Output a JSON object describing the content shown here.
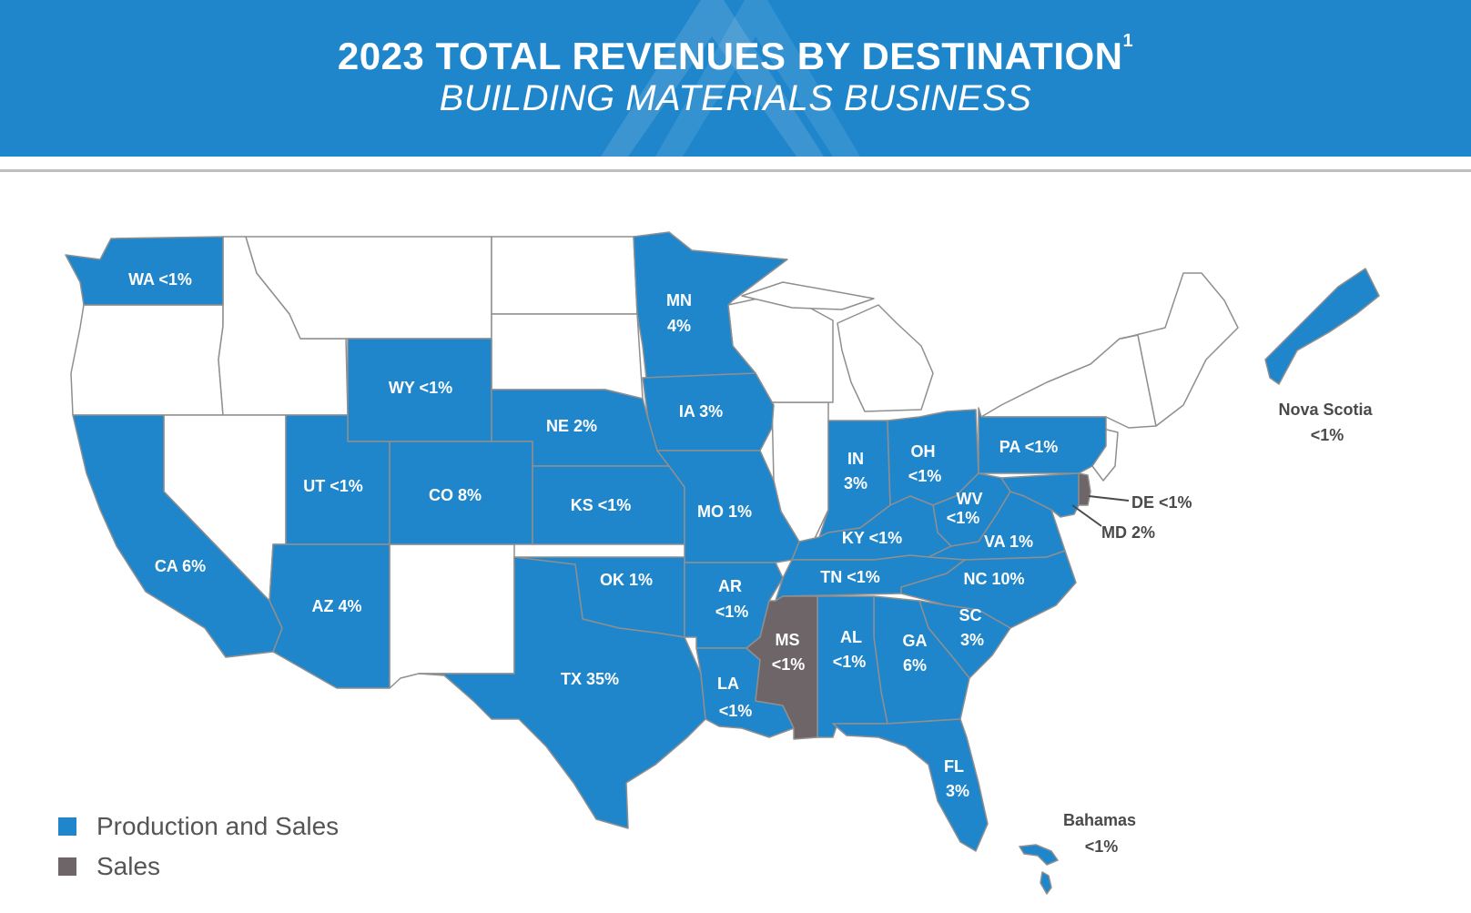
{
  "header": {
    "title": "2023 TOTAL REVENUES BY DESTINATION",
    "title_footnote": "1",
    "subtitle": "BUILDING MATERIALS BUSINESS"
  },
  "colors": {
    "header_bg": "#1f86cb",
    "production_and_sales": "#1f86cb",
    "sales": "#6e6569",
    "no_presence": "#ffffff",
    "border": "#8f8f8f"
  },
  "legend": [
    {
      "label": "Production and Sales",
      "color": "#1f86cb"
    },
    {
      "label": "Sales",
      "color": "#6e6569"
    }
  ],
  "regions": {
    "WA": {
      "label": "WA <1%",
      "category": "production_and_sales"
    },
    "MN": {
      "label": "MN",
      "value": "4%",
      "category": "production_and_sales"
    },
    "WY": {
      "label": "WY <1%",
      "category": "production_and_sales"
    },
    "IA": {
      "label": "IA 3%",
      "category": "production_and_sales"
    },
    "NE": {
      "label": "NE 2%",
      "category": "production_and_sales"
    },
    "UT": {
      "label": "UT <1%",
      "category": "production_and_sales"
    },
    "CO": {
      "label": "CO 8%",
      "category": "production_and_sales"
    },
    "KS": {
      "label": "KS <1%",
      "category": "production_and_sales"
    },
    "MO": {
      "label": "MO 1%",
      "category": "production_and_sales"
    },
    "IN": {
      "label": "IN",
      "value": "3%",
      "category": "production_and_sales"
    },
    "OH": {
      "label": "OH",
      "value": "<1%",
      "category": "production_and_sales"
    },
    "PA": {
      "label": "PA <1%",
      "category": "production_and_sales"
    },
    "WV": {
      "label": "WV",
      "value": "<1%",
      "category": "production_and_sales"
    },
    "KY": {
      "label": "KY <1%",
      "category": "production_and_sales"
    },
    "VA": {
      "label": "VA 1%",
      "category": "production_and_sales"
    },
    "CA": {
      "label": "CA 6%",
      "category": "production_and_sales"
    },
    "AZ": {
      "label": "AZ 4%",
      "category": "production_and_sales"
    },
    "OK": {
      "label": "OK 1%",
      "category": "production_and_sales"
    },
    "AR": {
      "label": "AR",
      "value": "<1%",
      "category": "production_and_sales"
    },
    "TN": {
      "label": "TN <1%",
      "category": "production_and_sales"
    },
    "NC": {
      "label": "NC 10%",
      "category": "production_and_sales"
    },
    "SC": {
      "label": "SC",
      "value": "3%",
      "category": "production_and_sales"
    },
    "GA": {
      "label": "GA",
      "value": "6%",
      "category": "production_and_sales"
    },
    "AL": {
      "label": "AL",
      "value": "<1%",
      "category": "production_and_sales"
    },
    "MS": {
      "label": "MS",
      "value": "<1%",
      "category": "sales"
    },
    "LA": {
      "label": "LA",
      "value": "<1%",
      "category": "production_and_sales"
    },
    "TX": {
      "label": "TX 35%",
      "category": "production_and_sales"
    },
    "FL": {
      "label": "FL",
      "value": "3%",
      "category": "production_and_sales"
    },
    "DE": {
      "label": "DE <1%",
      "category": "sales"
    },
    "MD": {
      "label": "MD 2%",
      "category": "production_and_sales"
    },
    "Nova Scotia": {
      "label": "Nova Scotia",
      "value": "<1%",
      "category": "production_and_sales"
    },
    "Bahamas": {
      "label": "Bahamas",
      "value": "<1%",
      "category": "production_and_sales"
    }
  }
}
